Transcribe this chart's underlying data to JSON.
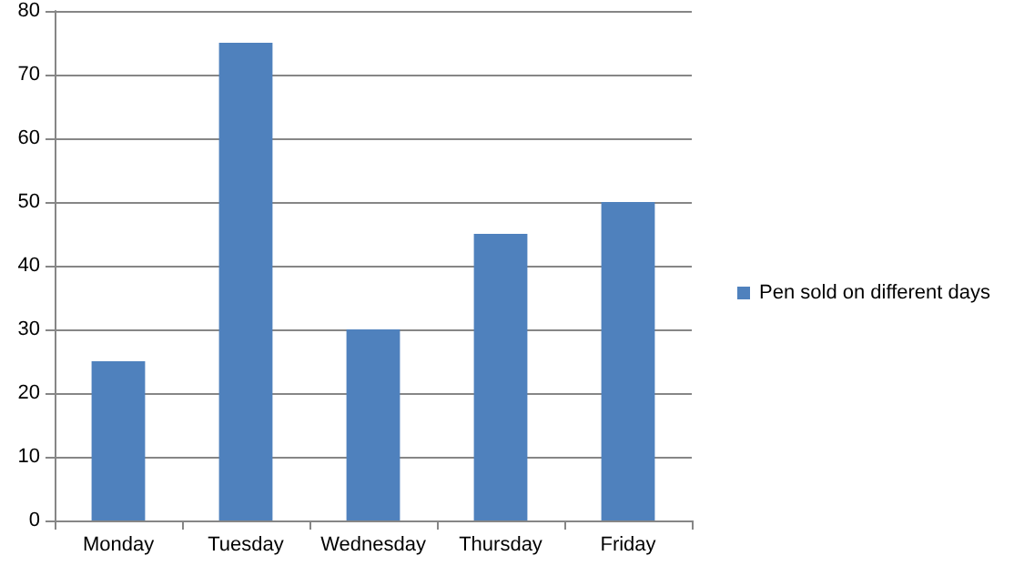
{
  "chart_data": {
    "type": "bar",
    "categories": [
      "Monday",
      "Tuesday",
      "Wednesday",
      "Thursday",
      "Friday"
    ],
    "series": [
      {
        "name": "Pen sold on different days",
        "color": "#4f81bd",
        "values": [
          25,
          75,
          30,
          45,
          50
        ]
      }
    ],
    "ylim": [
      0,
      80
    ],
    "yticks": [
      0,
      10,
      20,
      30,
      40,
      50,
      60,
      70,
      80
    ],
    "grid": "y",
    "legend": "right"
  }
}
